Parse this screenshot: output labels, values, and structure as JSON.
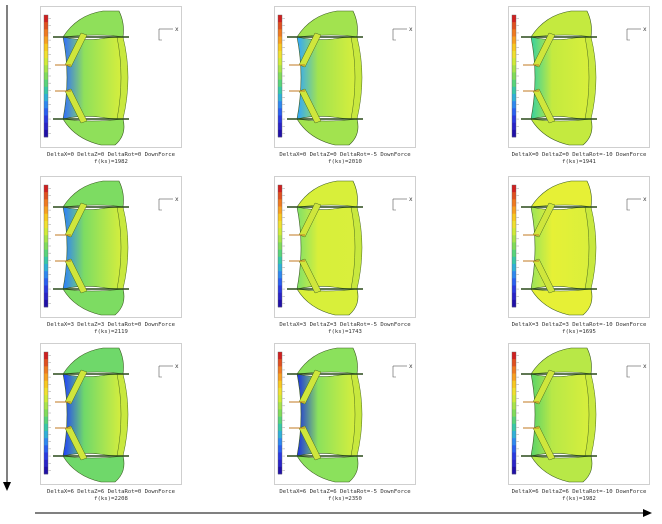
{
  "panels": [
    {
      "params": "DeltaX=0  DeltaZ=0  DeltaRot=0  DownForce",
      "force": "f(ks)=1982",
      "shade": "#8fe05a",
      "inner": "#2f6dff",
      "row": 0,
      "col": 0
    },
    {
      "params": "DeltaX=0  DeltaZ=0  DeltaRot=-5  DownForce",
      "force": "f(ks)=2010",
      "shade": "#a2e34f",
      "inner": "#2fa6ff",
      "row": 0,
      "col": 1
    },
    {
      "params": "DeltaX=0  DeltaZ=0  DeltaRot=-10  DownForce",
      "force": "f(ks)=1941",
      "shade": "#c4ea3f",
      "inner": "#35d0a0",
      "row": 0,
      "col": 2
    },
    {
      "params": "DeltaX=3  DeltaZ=3  DeltaRot=0  DownForce",
      "force": "f(ks)=2119",
      "shade": "#7ddc62",
      "inner": "#2a7dff",
      "row": 1,
      "col": 0
    },
    {
      "params": "DeltaX=3  DeltaZ=3  DeltaRot=-5  DownForce",
      "force": "f(ks)=1743",
      "shade": "#d8ef3a",
      "inner": "#7fe06a",
      "row": 1,
      "col": 1
    },
    {
      "params": "DeltaX=3  DeltaZ=3  DeltaRot=-10  DownForce",
      "force": "f(ks)=1695",
      "shade": "#e6f036",
      "inner": "#9ae45a",
      "row": 1,
      "col": 2
    },
    {
      "params": "DeltaX=6  DeltaZ=6  DeltaRot=0  DownForce",
      "force": "f(ks)=2208",
      "shade": "#6fd86a",
      "inner": "#1f3dff",
      "row": 2,
      "col": 0
    },
    {
      "params": "DeltaX=6  DeltaZ=6  DeltaRot=-5  DownForce",
      "force": "f(ks)=2350",
      "shade": "#8be15c",
      "inner": "#1a2fe0",
      "row": 2,
      "col": 1
    },
    {
      "params": "DeltaX=6  DeltaZ=6  DeltaRot=-10  DownForce",
      "force": "f(ks)=1982",
      "shade": "#b8e847",
      "inner": "#59d36a",
      "row": 2,
      "col": 2
    }
  ],
  "axis_label": "x"
}
